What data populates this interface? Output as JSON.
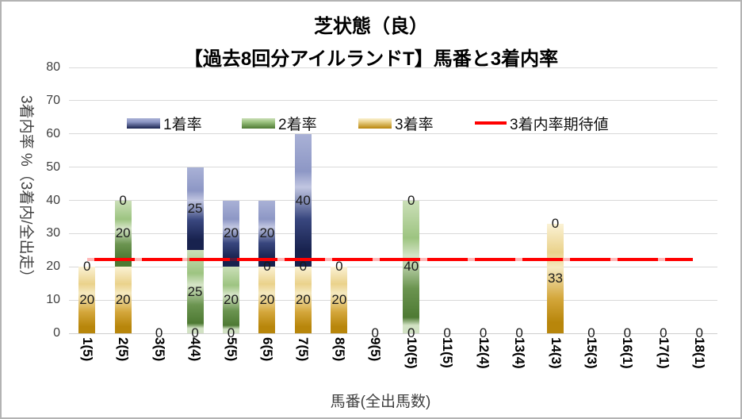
{
  "chart_data": {
    "type": "bar",
    "stacked": true,
    "title_lines": [
      "芝状態（良）",
      "【過去8回分アイルランドT】馬番と3着内率"
    ],
    "xlabel": "馬番(全出馬数)",
    "ylabel": "3着内率 %（3着内/全出走）",
    "ylim": [
      0,
      80
    ],
    "ytick_step": 10,
    "grid": true,
    "legend_position": "top",
    "categories": [
      "1(5)",
      "2(5)",
      "3(5)",
      "4(4)",
      "5(5)",
      "6(5)",
      "7(5)",
      "8(5)",
      "9(5)",
      "10(5)",
      "11(5)",
      "12(4)",
      "13(4)",
      "14(3)",
      "15(3)",
      "16(1)",
      "17(1)",
      "18(1)"
    ],
    "series": [
      {
        "name": "3着率",
        "key": "gold",
        "stack_position": "bottom",
        "values": [
          20,
          20,
          0,
          0,
          0,
          20,
          20,
          20,
          0,
          0,
          0,
          0,
          0,
          33,
          0,
          0,
          0,
          0
        ]
      },
      {
        "name": "2着率",
        "key": "green",
        "stack_position": "middle",
        "values": [
          0,
          20,
          0,
          25,
          20,
          0,
          0,
          0,
          0,
          40,
          0,
          0,
          0,
          0,
          0,
          0,
          0,
          0
        ]
      },
      {
        "name": "1着率",
        "key": "blue",
        "stack_position": "top",
        "values": [
          0,
          0,
          0,
          25,
          20,
          20,
          40,
          0,
          0,
          0,
          0,
          0,
          0,
          0,
          0,
          0,
          0,
          0
        ]
      }
    ],
    "expected_line": {
      "label": "3着内率期待値",
      "value": 22.2
    },
    "legend_items": [
      {
        "label": "1着率",
        "swatch": "blue"
      },
      {
        "label": "2着率",
        "swatch": "green"
      },
      {
        "label": "3着率",
        "swatch": "gold"
      },
      {
        "label": "3着内率期待値",
        "swatch": "line"
      }
    ],
    "colors": {
      "blue-l": "#A9B1D6",
      "blue-m": "#8D97C5",
      "blue-band": "#C1C6E1",
      "blue-d": "#39477F",
      "blue-dd": "#18224E",
      "blue-ab": "#C6CADF",
      "green-l": "#CBDFB8",
      "green-m": "#9DC481",
      "green-band": "#D6E5C8",
      "green-d": "#6B9450",
      "green-dd": "#4E7A33",
      "green-ab": "#D2E2C4",
      "gold-l": "#FBF2D5",
      "gold-m": "#EAD28B",
      "gold-band": "#F5E9C0",
      "gold-d": "#D4A73C",
      "gold-dd": "#B8860B",
      "expected": "#FF0000",
      "grid": "#D9D9D9"
    }
  }
}
